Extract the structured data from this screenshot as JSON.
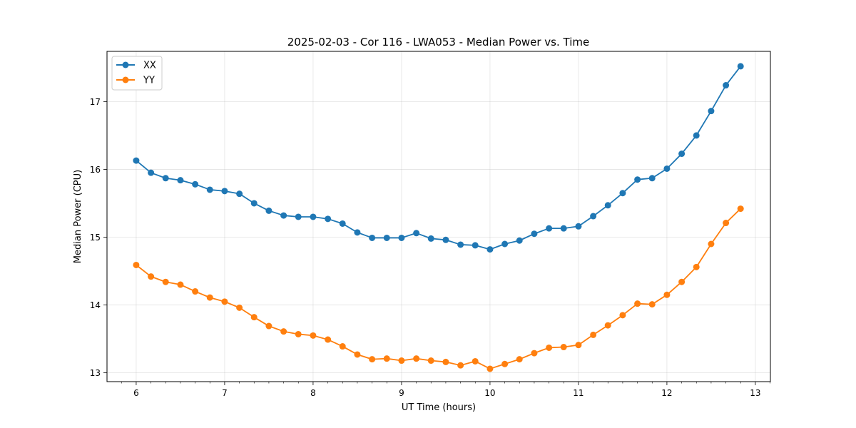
{
  "chart_data": {
    "type": "line",
    "title": "2025-02-03 - Cor 116 - LWA053 - Median Power vs. Time",
    "xlabel": "UT Time (hours)",
    "ylabel": "Median Power (CPU)",
    "xlim": [
      5.67,
      13.17
    ],
    "ylim": [
      12.87,
      17.74
    ],
    "xticks": [
      6,
      7,
      8,
      9,
      10,
      11,
      12,
      13
    ],
    "yticks": [
      13,
      14,
      15,
      16,
      17
    ],
    "grid": true,
    "legend_position": "top-left",
    "x": [
      6.0,
      6.167,
      6.333,
      6.5,
      6.667,
      6.833,
      7.0,
      7.167,
      7.333,
      7.5,
      7.667,
      7.833,
      8.0,
      8.167,
      8.333,
      8.5,
      8.667,
      8.833,
      9.0,
      9.167,
      9.333,
      9.5,
      9.667,
      9.833,
      10.0,
      10.167,
      10.333,
      10.5,
      10.667,
      10.833,
      11.0,
      11.167,
      11.333,
      11.5,
      11.667,
      11.833,
      12.0,
      12.167,
      12.333,
      12.5,
      12.667,
      12.833
    ],
    "series": [
      {
        "name": "XX",
        "color": "#1f77b4",
        "values": [
          16.13,
          15.95,
          15.87,
          15.84,
          15.78,
          15.7,
          15.68,
          15.64,
          15.5,
          15.39,
          15.32,
          15.3,
          15.3,
          15.27,
          15.2,
          15.07,
          14.99,
          14.99,
          14.99,
          15.06,
          14.98,
          14.96,
          14.89,
          14.88,
          14.82,
          14.9,
          14.95,
          15.05,
          15.13,
          15.13,
          15.16,
          15.31,
          15.47,
          15.65,
          15.85,
          15.87,
          16.01,
          16.23,
          16.5,
          16.86,
          17.24,
          17.52
        ]
      },
      {
        "name": "YY",
        "color": "#ff7f0e",
        "values": [
          14.59,
          14.42,
          14.34,
          14.3,
          14.2,
          14.11,
          14.05,
          13.96,
          13.82,
          13.69,
          13.61,
          13.57,
          13.55,
          13.49,
          13.39,
          13.27,
          13.2,
          13.21,
          13.18,
          13.21,
          13.18,
          13.16,
          13.11,
          13.17,
          13.06,
          13.13,
          13.2,
          13.29,
          13.37,
          13.38,
          13.41,
          13.56,
          13.7,
          13.85,
          14.02,
          14.01,
          14.15,
          14.34,
          14.56,
          14.9,
          15.21,
          15.42
        ]
      }
    ]
  }
}
